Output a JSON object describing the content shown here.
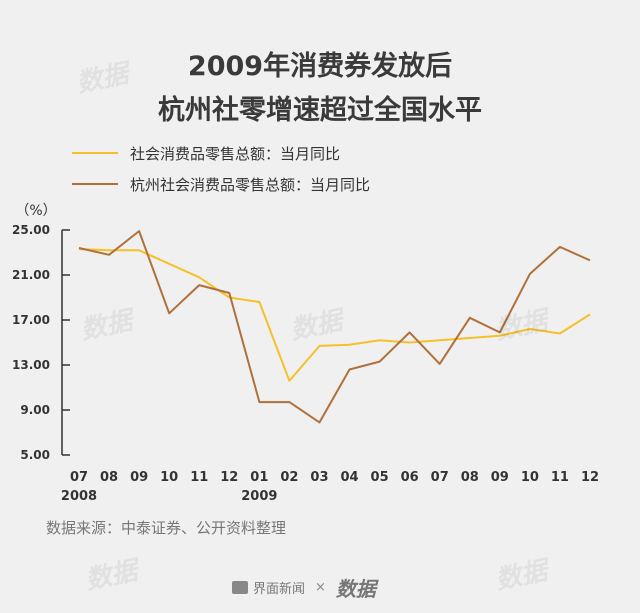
{
  "header": {
    "title_line1": "2009年消费券发放后",
    "title_line2": "杭州社零增速超过全国水平"
  },
  "watermark": "数据",
  "source": "数据来源：中泰证券、公开资料整理",
  "footer": {
    "brand1": "界面新闻",
    "times": "×",
    "brand2": "数据"
  },
  "colors": {
    "national": "#f5c02a",
    "hangzhou": "#b0703a",
    "axis": "#333333"
  },
  "chart_data": {
    "type": "line",
    "ylabel": "（%）",
    "ylim": [
      5,
      25
    ],
    "yticks": [
      "25.00",
      "21.00",
      "17.00",
      "13.00",
      "9.00",
      "5.00"
    ],
    "ytick_values": [
      25,
      21,
      17,
      13,
      9,
      5
    ],
    "categories": [
      "07",
      "08",
      "09",
      "10",
      "11",
      "12",
      "01",
      "02",
      "03",
      "04",
      "05",
      "06",
      "07",
      "08",
      "09",
      "10",
      "11",
      "12"
    ],
    "year_labels": [
      {
        "index": 0,
        "label": "2008"
      },
      {
        "index": 6,
        "label": "2009"
      }
    ],
    "grid": false,
    "series": [
      {
        "name": "社会消费品零售总额：当月同比",
        "color": "#f5c02a",
        "values": [
          23.3,
          23.2,
          23.2,
          22.0,
          20.8,
          19.0,
          18.6,
          11.6,
          14.7,
          14.8,
          15.2,
          15.0,
          15.2,
          15.4,
          15.6,
          16.2,
          15.8,
          17.5
        ]
      },
      {
        "name": "杭州社会消费品零售总额：当月同比",
        "color": "#b0703a",
        "values": [
          23.4,
          22.8,
          24.9,
          17.6,
          20.1,
          19.4,
          9.7,
          9.7,
          7.9,
          12.6,
          13.3,
          15.9,
          13.1,
          17.2,
          15.9,
          21.1,
          23.5,
          22.3
        ]
      }
    ]
  }
}
